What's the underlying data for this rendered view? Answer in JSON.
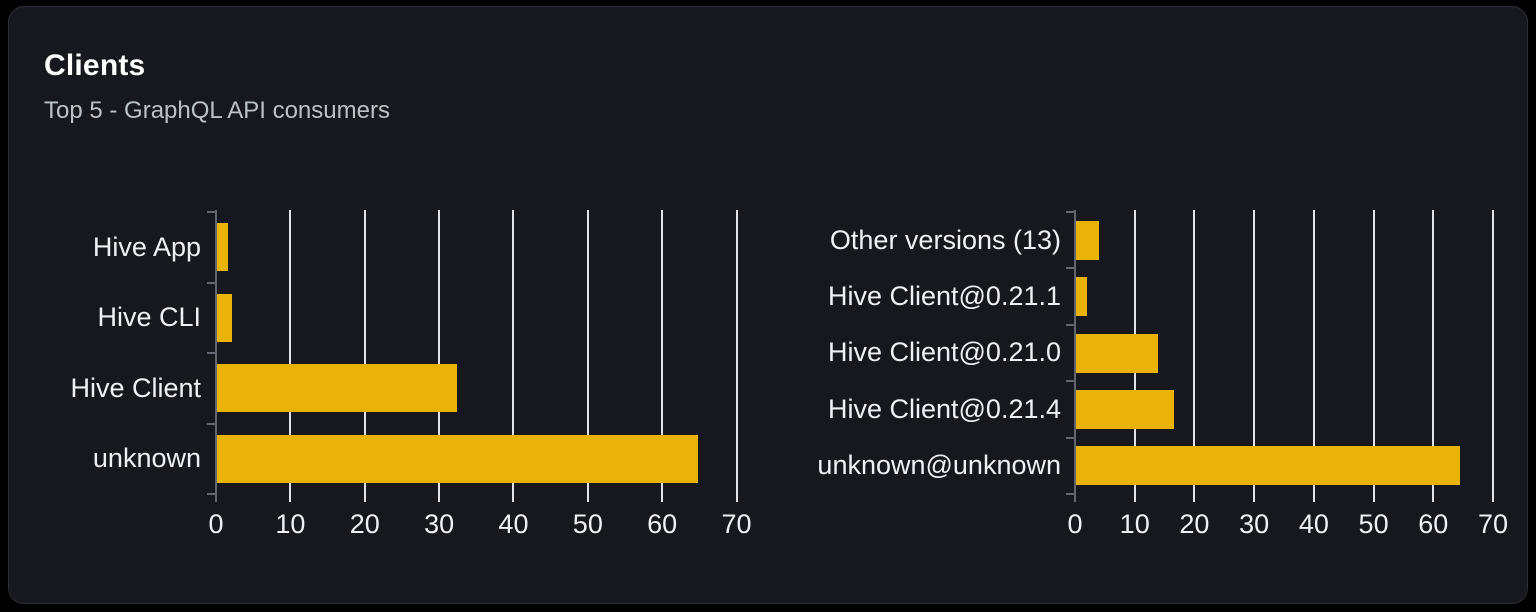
{
  "card": {
    "title": "Clients",
    "subtitle": "Top 5 - GraphQL API consumers"
  },
  "colors": {
    "page_bg": "#000000",
    "card_bg": "#16181d",
    "card_border": "#2a2d34",
    "bar": "#eab30a",
    "gridline": "#e0e4ea",
    "axis": "#63666e",
    "label_text": "#eef0f3",
    "subtitle_text": "#bcc1c8",
    "title_text": "#ffffff"
  },
  "chart_data": [
    {
      "type": "bar",
      "orientation": "horizontal",
      "title": "",
      "categories": [
        "Hive App",
        "Hive CLI",
        "Hive Client",
        "unknown"
      ],
      "values": [
        1.5,
        2,
        32.3,
        64.7
      ],
      "x_ticks": [
        0,
        10,
        20,
        30,
        40,
        50,
        60,
        70
      ],
      "xlim": [
        0,
        71
      ],
      "grid": true,
      "legend": false,
      "bar_color": "#eab30a"
    },
    {
      "type": "bar",
      "orientation": "horizontal",
      "title": "",
      "categories": [
        "Other versions (13)",
        "Hive Client@0.21.1",
        "Hive Client@0.21.0",
        "Hive Client@0.21.4",
        "unknown@unknown"
      ],
      "values": [
        3.9,
        1.8,
        13.7,
        16.4,
        64.3
      ],
      "x_ticks": [
        0,
        10,
        20,
        30,
        40,
        50,
        60,
        70
      ],
      "xlim": [
        0,
        71
      ],
      "grid": true,
      "legend": false,
      "bar_color": "#eab30a"
    }
  ]
}
